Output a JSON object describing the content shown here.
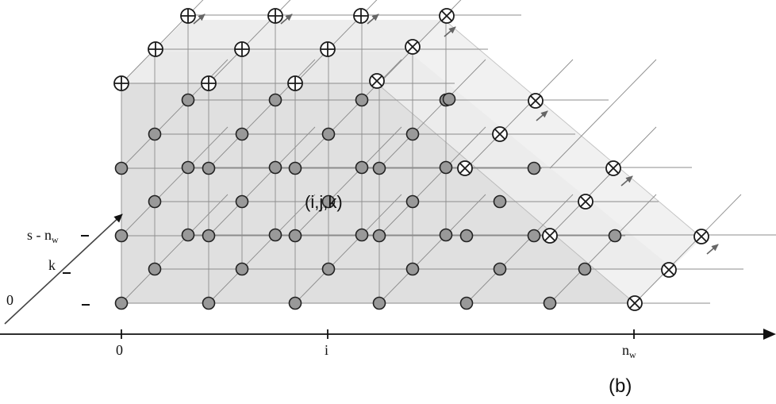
{
  "figure": {
    "panel_label": "(b)",
    "center_label": "(i,j,k)"
  },
  "x_axis": {
    "tick_labels": [
      {
        "id": "zero",
        "text": "0"
      },
      {
        "id": "i",
        "text": "i"
      },
      {
        "id": "nw",
        "text": "n",
        "sub": "w"
      }
    ]
  },
  "depth_axis": {
    "labels": [
      {
        "id": "s-minus-nw",
        "text": "s - n",
        "sub": "w"
      },
      {
        "id": "k",
        "text": "k"
      },
      {
        "id": "origin",
        "text": "0"
      }
    ]
  },
  "legend_symbols": {
    "boundary_top": "circled-plus",
    "boundary_right": "circled-times",
    "interior": "filled-gray-circle"
  },
  "colors": {
    "interior_node": "#999999",
    "grid_line": "#8c8c8c",
    "shade": "#d6d6d6",
    "arrow": "#666666"
  }
}
